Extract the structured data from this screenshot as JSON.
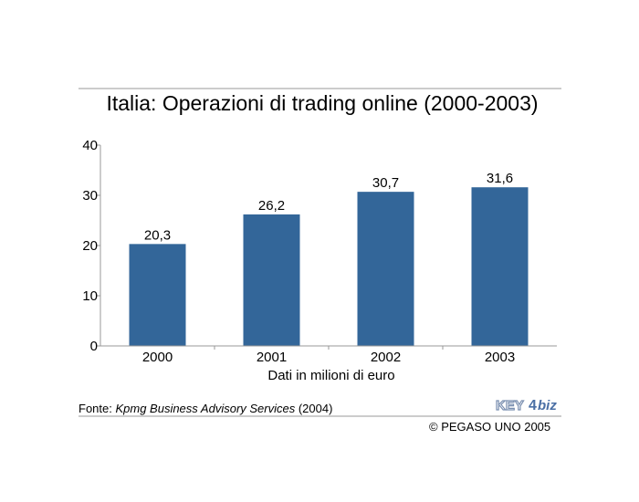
{
  "chart_data": {
    "type": "bar",
    "title": "Italia: Operazioni di trading online (2000-2003)",
    "xlabel": "Dati in milioni di euro",
    "ylabel": "",
    "categories": [
      "2000",
      "2001",
      "2002",
      "2003"
    ],
    "values": [
      20.3,
      26.2,
      30.7,
      31.6
    ],
    "data_labels": [
      "20,3",
      "26,2",
      "30,7",
      "31,6"
    ],
    "ylim": [
      0,
      40
    ],
    "yticks": [
      0,
      10,
      20,
      30,
      40
    ],
    "grid": false,
    "legend": "none",
    "bar_color": "#336699"
  },
  "footer": {
    "source_prefix": "Fonte: ",
    "source_name": "Kpmg Business Advisory Services",
    "source_suffix": " (2004)",
    "copyright": "© PEGASO UNO 2005"
  },
  "logo": {
    "text_left": "KEY",
    "text_mid": "4",
    "text_right": "biz",
    "color_left": "#7a8fb0",
    "color_right": "#4a6fa5"
  }
}
